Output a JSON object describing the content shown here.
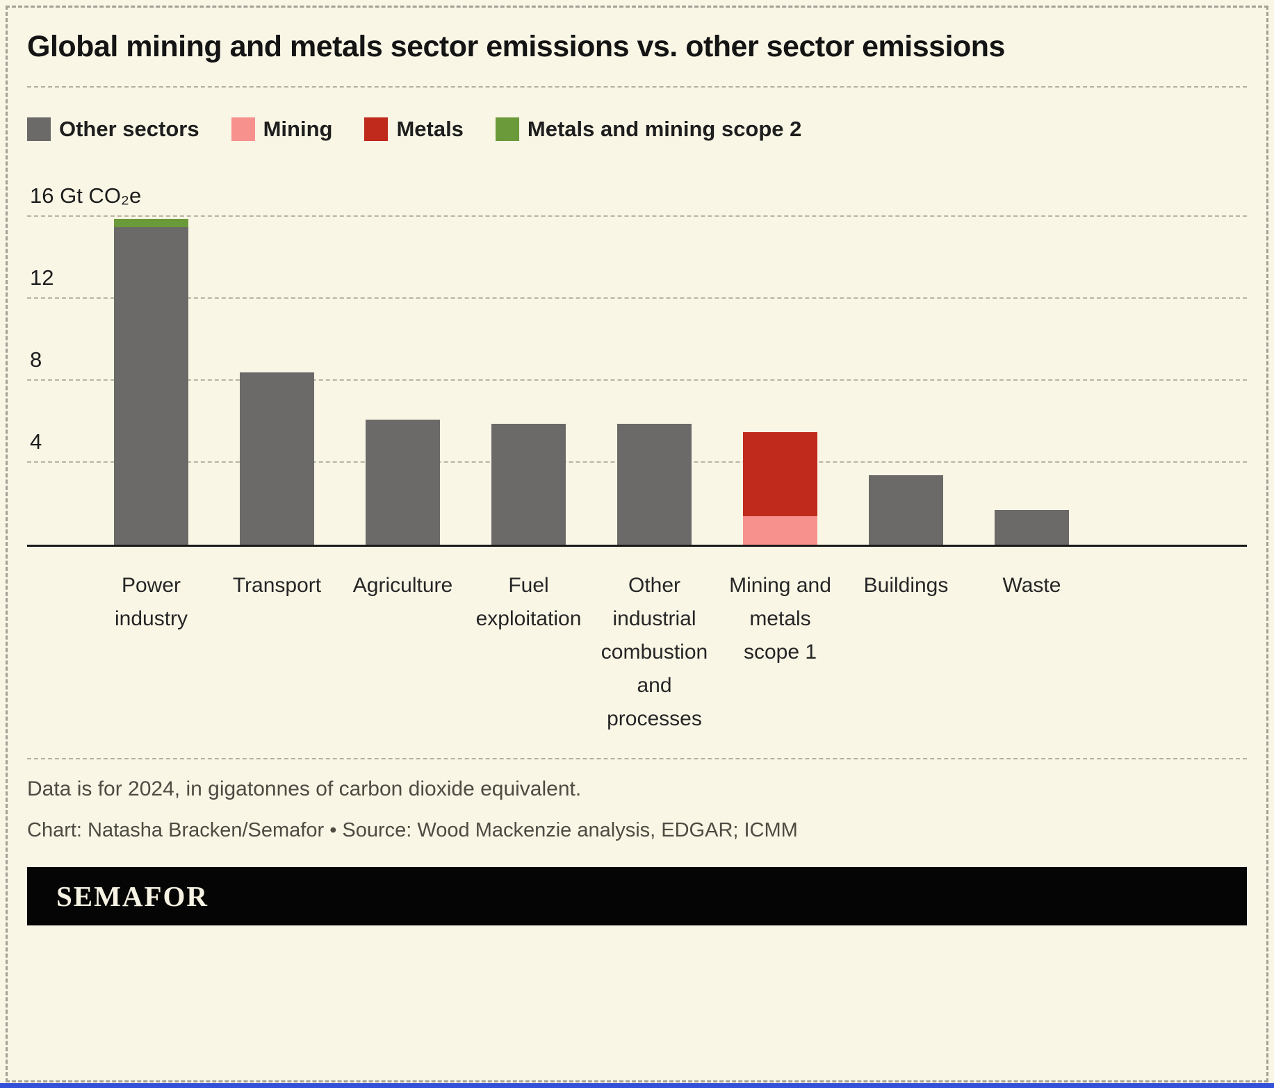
{
  "title": "Global mining and metals sector emissions vs. other sector emissions",
  "legend": [
    {
      "label": "Other sectors",
      "color": "#6b6a68"
    },
    {
      "label": "Mining",
      "color": "#f7918d"
    },
    {
      "label": "Metals",
      "color": "#bf2a1c"
    },
    {
      "label": "Metals and mining scope 2",
      "color": "#6b9a3a"
    }
  ],
  "chart_data": {
    "type": "bar",
    "stacked": true,
    "categories": [
      "Power industry",
      "Transport",
      "Agriculture",
      "Fuel exploitation",
      "Other industrial combustion and processes",
      "Mining and metals scope 1",
      "Buildings",
      "Waste"
    ],
    "series": [
      {
        "name": "Other sectors",
        "color": "#6b6a68",
        "values": [
          15.5,
          8.4,
          6.1,
          5.9,
          5.9,
          0,
          3.4,
          1.7
        ]
      },
      {
        "name": "Mining",
        "color": "#f7918d",
        "values": [
          0,
          0,
          0,
          0,
          0,
          1.4,
          0,
          0
        ]
      },
      {
        "name": "Metals",
        "color": "#bf2a1c",
        "values": [
          0,
          0,
          0,
          0,
          0,
          4.1,
          0,
          0
        ]
      },
      {
        "name": "Metals and mining scope 2",
        "color": "#6b9a3a",
        "values": [
          0.4,
          0,
          0,
          0,
          0,
          0,
          0,
          0
        ]
      }
    ],
    "ylim": [
      0,
      16
    ],
    "yticks": [
      {
        "value": 4,
        "label": "4"
      },
      {
        "value": 8,
        "label": "8"
      },
      {
        "value": 12,
        "label": "12"
      },
      {
        "value": 16,
        "label": "16 Gt CO₂e"
      }
    ],
    "ylabel": "Gt CO₂e",
    "grid": "horizontal-dashed",
    "legend_position": "top"
  },
  "notes": {
    "data_note": "Data is for 2024, in gigatonnes of carbon dioxide equivalent.",
    "credit": "Chart: Natasha Bracken/Semafor • Source: Wood Mackenzie analysis, EDGAR; ICMM"
  },
  "footer": {
    "brand": "SEMAFOR"
  },
  "colors": {
    "background": "#f9f6e6",
    "axis": "#1a1a1a",
    "gridline": "#b8b4a4",
    "bottom_accent": "#3452d9"
  }
}
